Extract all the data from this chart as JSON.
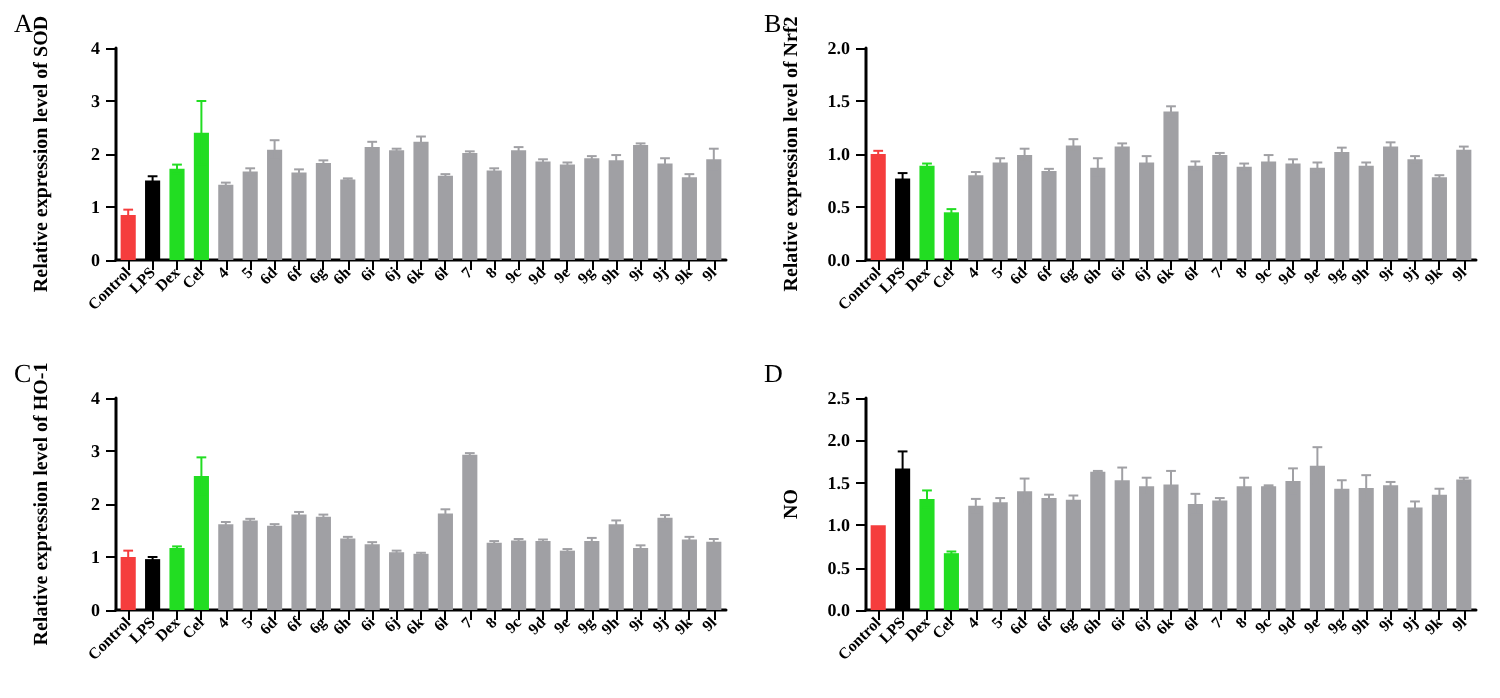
{
  "chart_data": [
    {
      "type": "bar",
      "title": "A",
      "ylabel": "Relative expression level of SOD",
      "categories": [
        "Control",
        "LPS",
        "Dex",
        "Cel",
        "4",
        "5",
        "6d",
        "6f",
        "6g",
        "6h",
        "6i",
        "6j",
        "6k",
        "6l",
        "7",
        "8",
        "9c",
        "9d",
        "9e",
        "9g",
        "9h",
        "9i",
        "9j",
        "9k",
        "9l"
      ],
      "values": [
        0.85,
        1.5,
        1.72,
        2.4,
        1.42,
        1.67,
        2.08,
        1.65,
        1.83,
        1.52,
        2.13,
        2.07,
        2.23,
        1.59,
        2.02,
        1.69,
        2.07,
        1.86,
        1.8,
        1.92,
        1.88,
        2.17,
        1.82,
        1.56,
        1.9
      ],
      "errors": [
        0.1,
        0.08,
        0.08,
        0.6,
        0.04,
        0.06,
        0.18,
        0.06,
        0.05,
        0.02,
        0.1,
        0.03,
        0.1,
        0.03,
        0.03,
        0.04,
        0.06,
        0.04,
        0.04,
        0.04,
        0.1,
        0.03,
        0.1,
        0.06,
        0.2
      ],
      "colors": [
        "#f53d3d",
        "#000000",
        "#22dd22",
        "#22dd22",
        "#a0a0a4",
        "#a0a0a4",
        "#a0a0a4",
        "#a0a0a4",
        "#a0a0a4",
        "#a0a0a4",
        "#a0a0a4",
        "#a0a0a4",
        "#a0a0a4",
        "#a0a0a4",
        "#a0a0a4",
        "#a0a0a4",
        "#a0a0a4",
        "#a0a0a4",
        "#a0a0a4",
        "#a0a0a4",
        "#a0a0a4",
        "#a0a0a4",
        "#a0a0a4",
        "#a0a0a4",
        "#a0a0a4"
      ],
      "ylim": [
        0,
        4
      ],
      "yticks": [
        0,
        1,
        2,
        3,
        4
      ]
    },
    {
      "type": "bar",
      "title": "B",
      "ylabel": "Relative expression level of Nrf2",
      "categories": [
        "Control",
        "LPS",
        "Dex",
        "Cel",
        "4",
        "5",
        "6d",
        "6f",
        "6g",
        "6h",
        "6i",
        "6j",
        "6k",
        "6l",
        "7",
        "8",
        "9c",
        "9d",
        "9e",
        "9g",
        "9h",
        "9i",
        "9j",
        "9k",
        "9l"
      ],
      "values": [
        1.0,
        0.77,
        0.89,
        0.45,
        0.8,
        0.92,
        0.99,
        0.84,
        1.08,
        0.87,
        1.07,
        0.92,
        1.4,
        0.89,
        0.99,
        0.88,
        0.93,
        0.91,
        0.87,
        1.02,
        0.89,
        1.07,
        0.95,
        0.78,
        1.04
      ],
      "errors": [
        0.03,
        0.05,
        0.02,
        0.03,
        0.03,
        0.04,
        0.06,
        0.02,
        0.06,
        0.09,
        0.03,
        0.06,
        0.05,
        0.04,
        0.02,
        0.03,
        0.06,
        0.04,
        0.05,
        0.04,
        0.03,
        0.04,
        0.03,
        0.02,
        0.03
      ],
      "colors": [
        "#f53d3d",
        "#000000",
        "#22dd22",
        "#22dd22",
        "#a0a0a4",
        "#a0a0a4",
        "#a0a0a4",
        "#a0a0a4",
        "#a0a0a4",
        "#a0a0a4",
        "#a0a0a4",
        "#a0a0a4",
        "#a0a0a4",
        "#a0a0a4",
        "#a0a0a4",
        "#a0a0a4",
        "#a0a0a4",
        "#a0a0a4",
        "#a0a0a4",
        "#a0a0a4",
        "#a0a0a4",
        "#a0a0a4",
        "#a0a0a4",
        "#a0a0a4",
        "#a0a0a4"
      ],
      "ylim": [
        0,
        2
      ],
      "yticks": [
        {
          "value": 0,
          "label": "0.0"
        },
        0.5,
        {
          "value": 1,
          "label": "1.0"
        },
        1.5,
        {
          "value": 2,
          "label": "2.0"
        }
      ]
    },
    {
      "type": "bar",
      "title": "C",
      "ylabel": "Relative expression level of HO-1",
      "categories": [
        "Control",
        "LPS",
        "Dex",
        "Cel",
        "4",
        "5",
        "6d",
        "6f",
        "6g",
        "6h",
        "6i",
        "6j",
        "6k",
        "6l",
        "7",
        "8",
        "9c",
        "9d",
        "9e",
        "9g",
        "9h",
        "9i",
        "9j",
        "9k",
        "9l"
      ],
      "values": [
        1.0,
        0.96,
        1.17,
        2.53,
        1.62,
        1.69,
        1.59,
        1.8,
        1.76,
        1.35,
        1.24,
        1.09,
        1.06,
        1.82,
        2.93,
        1.27,
        1.31,
        1.3,
        1.12,
        1.3,
        1.62,
        1.17,
        1.74,
        1.33,
        1.29
      ],
      "errors": [
        0.12,
        0.04,
        0.03,
        0.35,
        0.04,
        0.03,
        0.03,
        0.05,
        0.04,
        0.03,
        0.04,
        0.03,
        0.02,
        0.08,
        0.03,
        0.03,
        0.03,
        0.03,
        0.03,
        0.06,
        0.07,
        0.05,
        0.05,
        0.05,
        0.05
      ],
      "colors": [
        "#f53d3d",
        "#000000",
        "#22dd22",
        "#22dd22",
        "#a0a0a4",
        "#a0a0a4",
        "#a0a0a4",
        "#a0a0a4",
        "#a0a0a4",
        "#a0a0a4",
        "#a0a0a4",
        "#a0a0a4",
        "#a0a0a4",
        "#a0a0a4",
        "#a0a0a4",
        "#a0a0a4",
        "#a0a0a4",
        "#a0a0a4",
        "#a0a0a4",
        "#a0a0a4",
        "#a0a0a4",
        "#a0a0a4",
        "#a0a0a4",
        "#a0a0a4",
        "#a0a0a4"
      ],
      "ylim": [
        0,
        4
      ],
      "yticks": [
        0,
        1,
        2,
        3,
        4
      ]
    },
    {
      "type": "bar",
      "title": "D",
      "ylabel": "NO",
      "categories": [
        "Control",
        "LPS",
        "Dex",
        "Cel",
        "4",
        "5",
        "6d",
        "6f",
        "6g",
        "6h",
        "6i",
        "6j",
        "6k",
        "6l",
        "7",
        "8",
        "9c",
        "9d",
        "9e",
        "9g",
        "9h",
        "9i",
        "9j",
        "9k",
        "9l"
      ],
      "values": [
        1.0,
        1.67,
        1.31,
        0.67,
        1.23,
        1.27,
        1.4,
        1.32,
        1.3,
        1.63,
        1.53,
        1.46,
        1.48,
        1.25,
        1.29,
        1.46,
        1.46,
        1.52,
        1.7,
        1.43,
        1.44,
        1.47,
        1.21,
        1.36,
        1.54
      ],
      "errors": [
        null,
        0.2,
        0.1,
        0.02,
        0.08,
        0.05,
        0.15,
        0.04,
        0.05,
        0.01,
        0.15,
        0.1,
        0.16,
        0.12,
        0.03,
        0.1,
        0.01,
        0.15,
        0.22,
        0.1,
        0.15,
        0.04,
        0.07,
        0.07,
        0.02
      ],
      "colors": [
        "#f53d3d",
        "#000000",
        "#22dd22",
        "#22dd22",
        "#a0a0a4",
        "#a0a0a4",
        "#a0a0a4",
        "#a0a0a4",
        "#a0a0a4",
        "#a0a0a4",
        "#a0a0a4",
        "#a0a0a4",
        "#a0a0a4",
        "#a0a0a4",
        "#a0a0a4",
        "#a0a0a4",
        "#a0a0a4",
        "#a0a0a4",
        "#a0a0a4",
        "#a0a0a4",
        "#a0a0a4",
        "#a0a0a4",
        "#a0a0a4",
        "#a0a0a4",
        "#a0a0a4"
      ],
      "ylim": [
        0,
        2.5
      ],
      "yticks": [
        {
          "value": 0,
          "label": "0.0"
        },
        0.5,
        {
          "value": 1,
          "label": "1.0"
        },
        1.5,
        {
          "value": 2,
          "label": "2.0"
        },
        2.5
      ]
    }
  ]
}
